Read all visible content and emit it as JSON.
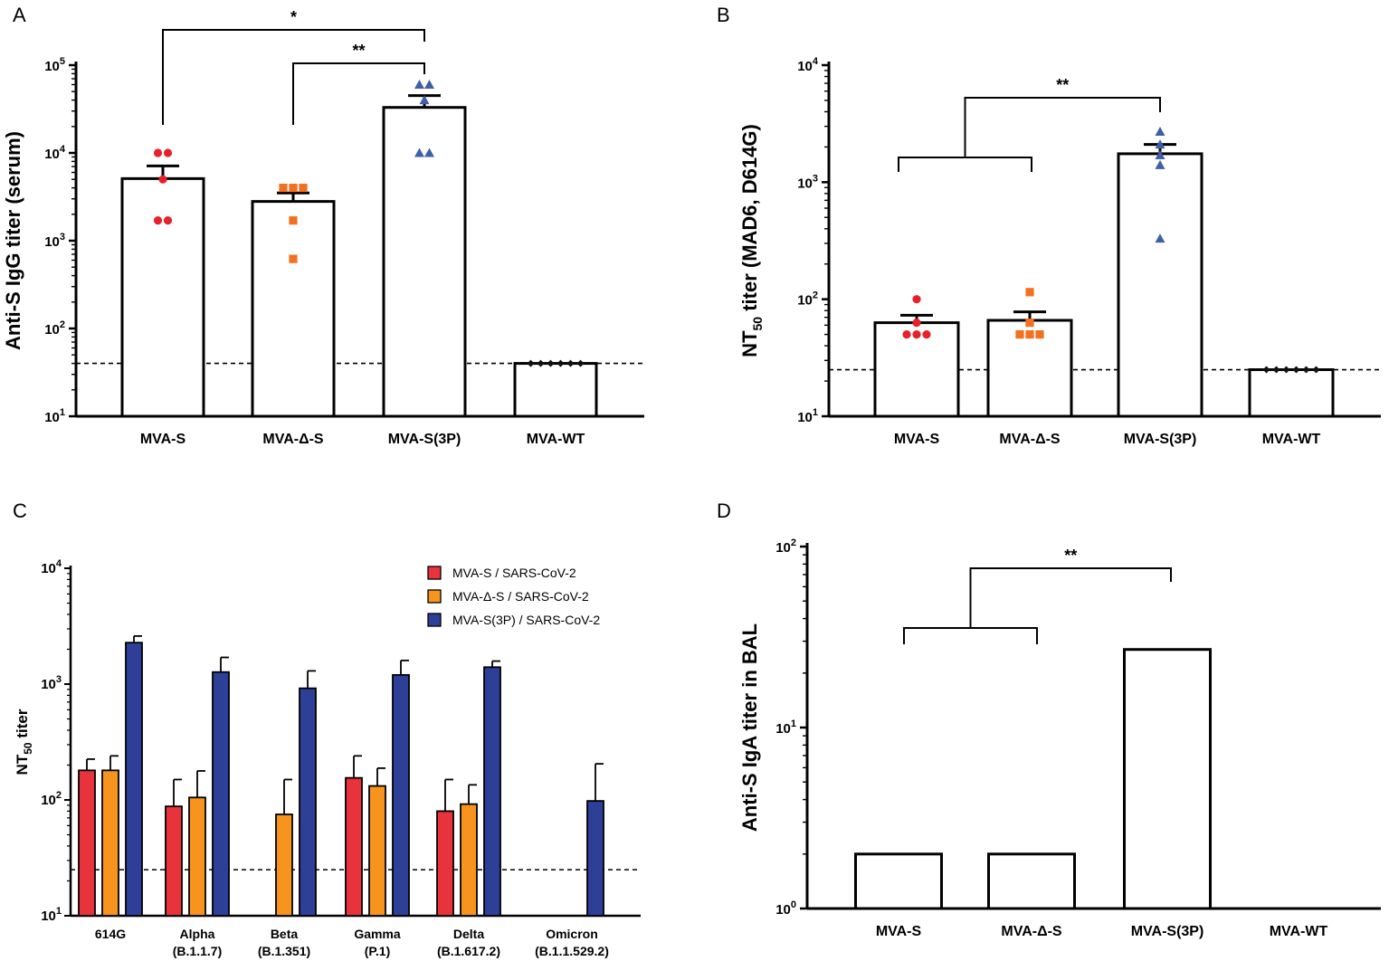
{
  "chart_data": [
    {
      "panel": "A",
      "type": "bar",
      "scale": "log",
      "ylabel": "Anti-S IgG titer (serum)",
      "ylim": [
        10,
        100000
      ],
      "yticks": [
        "10^1",
        "10^2",
        "10^3",
        "10^4",
        "10^5"
      ],
      "categories": [
        "MVA-S",
        "MVA-Δ-S",
        "MVA-S(3P)",
        "MVA-WT"
      ],
      "values": [
        5100,
        2800,
        33000,
        40
      ],
      "errors_upper": [
        7100,
        3500,
        45000,
        40
      ],
      "points": [
        [
          10000,
          10000,
          5000,
          1700,
          1700
        ],
        [
          4000,
          4000,
          4000,
          1700,
          620
        ],
        [
          60000,
          60000,
          40000,
          10000,
          10000
        ],
        [
          40,
          40,
          40,
          40,
          40,
          40
        ]
      ],
      "point_markers": [
        "circle",
        "square",
        "triangle",
        "diamond"
      ],
      "point_colors": [
        "#e8202a",
        "#f37021",
        "#3f5fa8",
        "#111111"
      ],
      "detection_limit": 40,
      "significance": [
        {
          "from": "MVA-S",
          "to": "MVA-S(3P)",
          "label": "*"
        },
        {
          "from": "MVA-Δ-S",
          "to": "MVA-S(3P)",
          "label": "**"
        }
      ]
    },
    {
      "panel": "B",
      "type": "bar",
      "scale": "log",
      "ylabel_main": "NT",
      "ylabel_sub": "50",
      "ylabel_rest": " titer (MAD6, D614G)",
      "ylim": [
        10,
        10000
      ],
      "yticks": [
        "10^1",
        "10^2",
        "10^3",
        "10^4"
      ],
      "categories": [
        "MVA-S",
        "MVA-Δ-S",
        "MVA-S(3P)",
        "MVA-WT"
      ],
      "values": [
        63,
        66,
        1750,
        25
      ],
      "errors_upper": [
        73,
        78,
        2100,
        25
      ],
      "points": [
        [
          100,
          63,
          50,
          50,
          50
        ],
        [
          115,
          63,
          50,
          50,
          50
        ],
        [
          2700,
          2100,
          1700,
          1400,
          330
        ],
        [
          25,
          25,
          25,
          25,
          25,
          25
        ]
      ],
      "point_markers": [
        "circle",
        "square",
        "triangle",
        "diamond"
      ],
      "point_colors": [
        "#e8202a",
        "#f37021",
        "#3f5fa8",
        "#111111"
      ],
      "detection_limit": 25,
      "significance": [
        {
          "from_group": [
            "MVA-S",
            "MVA-Δ-S"
          ],
          "to": "MVA-S(3P)",
          "label": "**"
        }
      ]
    },
    {
      "panel": "C",
      "type": "bar",
      "scale": "log",
      "ylabel_main": "NT",
      "ylabel_sub": "50",
      "ylabel_rest": " titer",
      "ylim": [
        10,
        10000
      ],
      "yticks": [
        "10^1",
        "10^2",
        "10^3",
        "10^4"
      ],
      "categories": [
        "614G",
        "Alpha",
        "Beta",
        "Gamma",
        "Delta",
        "Omicron"
      ],
      "category_sublabels": [
        "",
        "(B.1.1.7)",
        "(B.1.351)",
        "(P.1)",
        "(B.1.617.2)",
        "(B.1.1.529.2)"
      ],
      "series": [
        {
          "name": "MVA-S / SARS-CoV-2",
          "color": "#e8323c",
          "values": [
            180,
            88,
            null,
            155,
            80,
            null
          ],
          "errors_upper": [
            225,
            150,
            null,
            240,
            150,
            null
          ]
        },
        {
          "name": "MVA-Δ-S / SARS-CoV-2",
          "color": "#f7941d",
          "values": [
            180,
            105,
            75,
            132,
            92,
            null
          ],
          "errors_upper": [
            240,
            178,
            150,
            188,
            135,
            null
          ]
        },
        {
          "name": "MVA-S(3P) / SARS-CoV-2",
          "color": "#2d3f97",
          "values": [
            2280,
            1270,
            920,
            1200,
            1400,
            98
          ],
          "errors_upper": [
            2600,
            1700,
            1300,
            1600,
            1580,
            205
          ]
        }
      ],
      "detection_limit": 25,
      "legend_position": "top-right"
    },
    {
      "panel": "D",
      "type": "bar",
      "scale": "log",
      "ylabel": "Anti-S IgA titer in BAL",
      "ylim": [
        1,
        100
      ],
      "yticks": [
        "10^0",
        "10^1",
        "10^2"
      ],
      "categories": [
        "MVA-S",
        "MVA-Δ-S",
        "MVA-S(3P)",
        "MVA-WT"
      ],
      "values": [
        2,
        2,
        27,
        null
      ],
      "significance": [
        {
          "from_group": [
            "MVA-S",
            "MVA-Δ-S"
          ],
          "to": "MVA-S(3P)",
          "label": "**"
        }
      ]
    }
  ]
}
